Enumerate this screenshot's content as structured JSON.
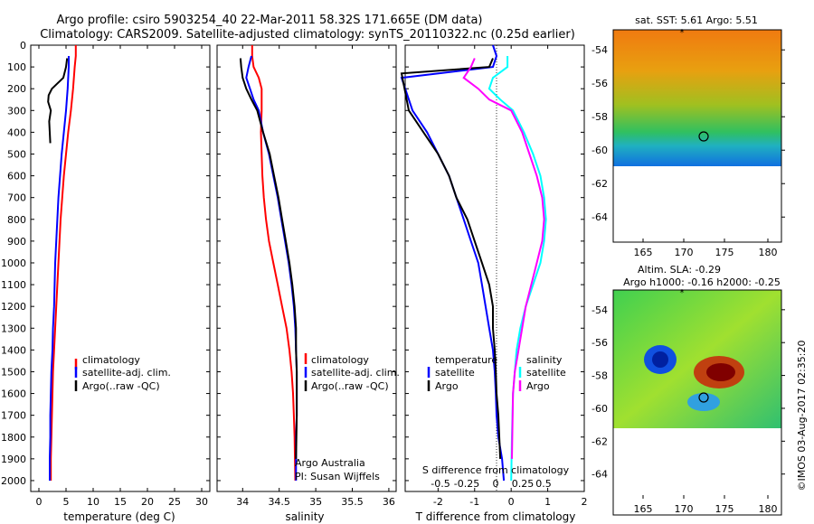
{
  "header": {
    "line1": "Argo profile: csiro 5903254_40 22-Mar-2011 58.32S 171.665E (DM data)",
    "line2": "Climatology: CARS2009. Satellite-adjusted climatology: synTS_20110322.nc (0.25d earlier)"
  },
  "colors": {
    "climatology": "#ff0000",
    "satellite": "#0000ff",
    "argo": "#000000",
    "sat_salinity": "#00ffff",
    "argo_salinity": "#ff00ff"
  },
  "chart_data": [
    {
      "type": "line",
      "xlabel": "temperature (deg C)",
      "ylabel": "",
      "xlim": [
        -1.5,
        31.5
      ],
      "ylim": [
        2050,
        0
      ],
      "xticks": [
        0,
        5,
        10,
        15,
        20,
        25,
        30
      ],
      "yticks": [
        0,
        100,
        200,
        300,
        400,
        500,
        600,
        700,
        800,
        900,
        1000,
        1100,
        1200,
        1300,
        1400,
        1500,
        1600,
        1700,
        1800,
        1900,
        2000
      ],
      "legend": [
        "climatology",
        "satellite-adj. clim.",
        "Argo(..raw -QC)"
      ],
      "series": [
        {
          "name": "climatology",
          "color": "#ff0000",
          "x": [
            6.8,
            6.8,
            6.6,
            6.3,
            5.9,
            5.4,
            5.0,
            4.6,
            4.3,
            4.0,
            3.8,
            3.6,
            3.4,
            3.2,
            3.0,
            2.8,
            2.6,
            2.5,
            2.4,
            2.3,
            2.2,
            2.2
          ],
          "y": [
            0,
            50,
            100,
            200,
            300,
            400,
            500,
            600,
            700,
            800,
            900,
            1000,
            1100,
            1200,
            1300,
            1400,
            1500,
            1600,
            1700,
            1800,
            1900,
            2000
          ]
        },
        {
          "name": "satellite-adj. clim.",
          "color": "#0000ff",
          "x": [
            5.5,
            5.5,
            5.3,
            5.0,
            4.6,
            4.2,
            3.9,
            3.6,
            3.4,
            3.2,
            3.0,
            2.9,
            2.8,
            2.6,
            2.5,
            2.3,
            2.2,
            2.1,
            2.1,
            2.0,
            2.0
          ],
          "y": [
            50,
            100,
            200,
            300,
            400,
            500,
            600,
            700,
            800,
            900,
            1000,
            1100,
            1200,
            1300,
            1400,
            1500,
            1600,
            1700,
            1800,
            1900,
            2000
          ]
        },
        {
          "name": "Argo(..raw -QC)",
          "color": "#000000",
          "x": [
            5.2,
            5.0,
            4.5,
            2.4,
            1.8,
            1.7,
            2.2,
            1.9,
            2.0,
            2.1
          ],
          "y": [
            60,
            100,
            150,
            200,
            230,
            260,
            300,
            350,
            400,
            450
          ]
        }
      ],
      "annotations": []
    },
    {
      "type": "line",
      "xlabel": "salinity",
      "ylabel": "",
      "xlim": [
        33.65,
        36.1
      ],
      "ylim": [
        2050,
        0
      ],
      "xticks": [
        34,
        34.5,
        35,
        35.5,
        36
      ],
      "legend": [
        "climatology",
        "satellite-adj. clim.",
        "Argo(..raw -QC)"
      ],
      "series": [
        {
          "name": "climatology",
          "color": "#ff0000",
          "x": [
            34.13,
            34.13,
            34.15,
            34.22,
            34.26,
            34.26,
            34.25,
            34.26,
            34.27,
            34.29,
            34.32,
            34.36,
            34.42,
            34.48,
            34.54,
            34.6,
            34.64,
            34.67,
            34.69,
            34.7,
            34.71,
            34.72
          ],
          "y": [
            0,
            50,
            100,
            150,
            200,
            300,
            400,
            500,
            600,
            700,
            800,
            900,
            1000,
            1100,
            1200,
            1300,
            1400,
            1500,
            1600,
            1700,
            1800,
            2000
          ]
        },
        {
          "name": "satellite-adj. clim.",
          "color": "#0000ff",
          "x": [
            34.12,
            34.08,
            34.05,
            34.1,
            34.15,
            34.22,
            34.28,
            34.36,
            34.42,
            34.48,
            34.53,
            34.58,
            34.63,
            34.67,
            34.7,
            34.72,
            34.73,
            34.74,
            34.74,
            34.74,
            34.73,
            34.73
          ],
          "y": [
            50,
            100,
            150,
            200,
            250,
            300,
            400,
            500,
            600,
            700,
            800,
            900,
            1000,
            1100,
            1200,
            1300,
            1400,
            1500,
            1600,
            1700,
            1800,
            2000
          ]
        },
        {
          "name": "Argo(..raw -QC)",
          "color": "#000000",
          "x": [
            33.97,
            33.98,
            34.0,
            34.05,
            34.12,
            34.2,
            34.28,
            34.37,
            34.43,
            34.49,
            34.54,
            34.59,
            34.64,
            34.68,
            34.71,
            34.73,
            34.73,
            34.74,
            34.74,
            34.74,
            34.73
          ],
          "y": [
            60,
            100,
            150,
            200,
            250,
            300,
            400,
            500,
            600,
            700,
            800,
            900,
            1000,
            1100,
            1200,
            1300,
            1400,
            1500,
            1600,
            1700,
            1900
          ]
        }
      ],
      "annotations": [
        "Argo Australia",
        "PI: Susan Wijffels"
      ]
    },
    {
      "type": "line",
      "xlabel": "T difference from climatology",
      "x2label": "S difference from climatology",
      "xlim": [
        -2.9,
        2.0
      ],
      "ylim": [
        2050,
        0
      ],
      "xticks": [
        -2,
        -1,
        0,
        1,
        2
      ],
      "x2ticks": [
        "-0.5",
        "-0.25",
        "0",
        "0.25",
        "0.5"
      ],
      "legend_left_title": "temperature",
      "legend_right_title": "salinity",
      "legend": [
        "satellite",
        "Argo",
        "satellite",
        "Argo"
      ],
      "series": [
        {
          "name": "temperature satellite",
          "color": "#0000ff",
          "x": [
            -0.5,
            -0.4,
            -0.5,
            -3.0,
            -2.7,
            -2.3,
            -2.0,
            -1.7,
            -1.5,
            -1.3,
            -1.1,
            -0.9,
            -0.8,
            -0.7,
            -0.6,
            -0.5,
            -0.45,
            -0.42,
            -0.4,
            -0.35,
            -0.25,
            -0.2
          ],
          "y": [
            0,
            50,
            100,
            150,
            300,
            400,
            500,
            600,
            700,
            800,
            900,
            1000,
            1100,
            1200,
            1300,
            1400,
            1500,
            1600,
            1700,
            1800,
            1900,
            2000
          ]
        },
        {
          "name": "temperature Argo",
          "color": "#000000",
          "x": [
            -0.5,
            -0.6,
            -3.0,
            -2.8,
            -2.4,
            -2.0,
            -1.7,
            -1.5,
            -1.2,
            -1.0,
            -0.8,
            -0.6,
            -0.5,
            -0.5,
            -0.45,
            -0.42,
            -0.4,
            -0.35,
            -0.3
          ],
          "y": [
            60,
            100,
            130,
            300,
            400,
            500,
            600,
            700,
            800,
            900,
            1000,
            1100,
            1200,
            1300,
            1400,
            1500,
            1600,
            1700,
            1900
          ]
        },
        {
          "name": "salinity satellite",
          "color": "#00ffff",
          "x": [
            -0.1,
            -0.1,
            -0.5,
            -0.6,
            -0.3,
            0.05,
            0.35,
            0.6,
            0.8,
            0.9,
            0.95,
            0.9,
            0.8,
            0.6,
            0.4,
            0.25,
            0.15,
            0.1,
            0.05,
            0.02,
            0.0
          ],
          "y": [
            50,
            100,
            150,
            200,
            250,
            300,
            400,
            500,
            600,
            700,
            800,
            900,
            1000,
            1100,
            1200,
            1300,
            1400,
            1500,
            1600,
            1800,
            2000
          ]
        },
        {
          "name": "salinity Argo",
          "color": "#ff00ff",
          "x": [
            -1.0,
            -1.1,
            -1.3,
            -0.9,
            -0.6,
            0.0,
            0.3,
            0.5,
            0.7,
            0.85,
            0.9,
            0.85,
            0.7,
            0.55,
            0.4,
            0.3,
            0.2,
            0.1,
            0.05,
            0.02
          ],
          "y": [
            60,
            100,
            150,
            200,
            250,
            300,
            400,
            500,
            600,
            700,
            800,
            900,
            1000,
            1100,
            1200,
            1300,
            1400,
            1500,
            1600,
            1900
          ]
        }
      ],
      "annotations": []
    }
  ],
  "maps": {
    "sst": {
      "title": "sat. SST: 5.61 Argo: 5.51",
      "xticks": [
        "165",
        "170",
        "175",
        "180"
      ],
      "yticks": [
        "-54",
        "-56",
        "-58",
        "-60",
        "-62",
        "-64"
      ]
    },
    "sla": {
      "title1": "Altim. SLA: -0.29",
      "title2": "Argo h1000: -0.16 h2000: -0.25",
      "xticks": [
        "165",
        "170",
        "175",
        "180"
      ],
      "yticks": [
        "-54",
        "-56",
        "-58",
        "-60",
        "-62",
        "-64"
      ]
    },
    "credit": "©IMOS 03-Aug-2017 02:35:20"
  }
}
